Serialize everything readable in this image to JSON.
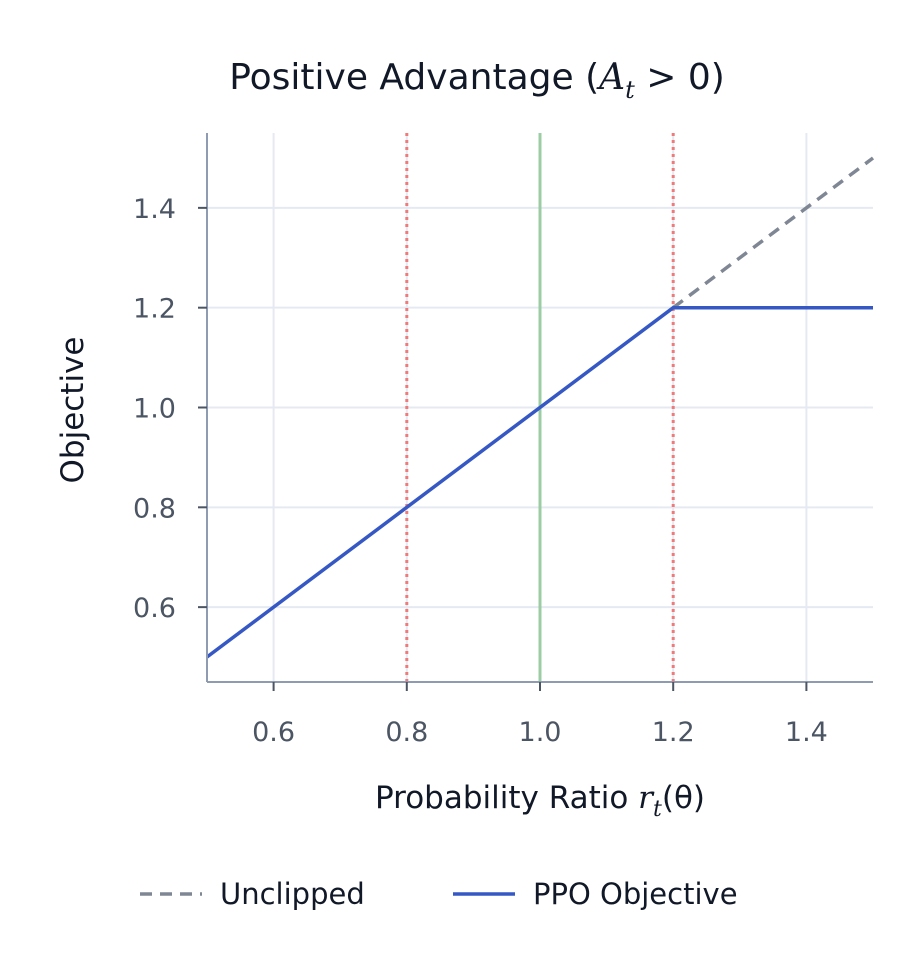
{
  "chart_data": {
    "type": "line",
    "title_main": "Positive Advantage (",
    "title_math": "A",
    "title_sub": "t",
    "title_rest": " > 0)",
    "xlabel_main": "Probability Ratio ",
    "xlabel_math": "r",
    "xlabel_sub": "t",
    "xlabel_rest": "(θ)",
    "ylabel": "Objective",
    "xlim": [
      0.5,
      1.5
    ],
    "ylim": [
      0.45,
      1.55
    ],
    "xticks": [
      0.6,
      0.8,
      1.0,
      1.2,
      1.4
    ],
    "xtick_labels": [
      "0.6",
      "0.8",
      "1.0",
      "1.2",
      "1.4"
    ],
    "yticks": [
      0.6,
      0.8,
      1.0,
      1.2,
      1.4
    ],
    "ytick_labels": [
      "0.6",
      "0.8",
      "1.0",
      "1.2",
      "1.4"
    ],
    "grid": true,
    "legend_position": "bottom-center",
    "series": [
      {
        "name": "Unclipped",
        "style": "dashed",
        "color": "#7f8794",
        "x": [
          1.2,
          1.5
        ],
        "y": [
          1.2,
          1.5
        ]
      },
      {
        "name": "PPO Objective",
        "style": "solid",
        "color": "#3558c4",
        "x": [
          0.5,
          1.2,
          1.5
        ],
        "y": [
          0.5,
          1.2,
          1.2
        ]
      }
    ],
    "reference_lines": [
      {
        "x": 0.8,
        "style": "dotted",
        "color": "#f07a7a"
      },
      {
        "x": 1.0,
        "style": "solid",
        "color": "#9ccca4"
      },
      {
        "x": 1.2,
        "style": "dotted",
        "color": "#f07a7a"
      }
    ],
    "colors": {
      "axis": "#8e9bb0",
      "grid": "#e5eaf2"
    }
  }
}
